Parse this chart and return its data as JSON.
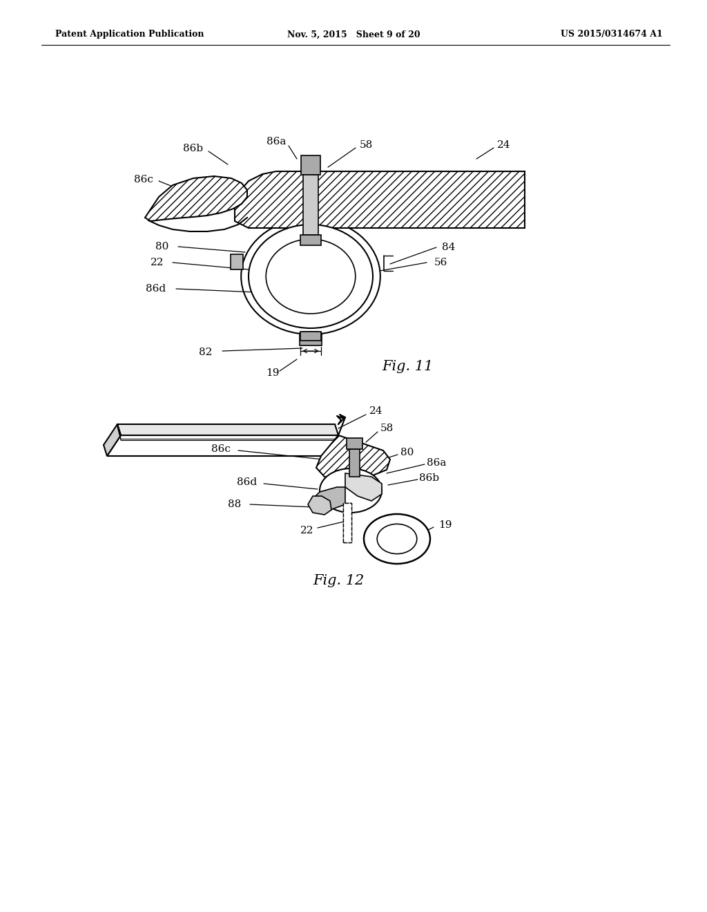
{
  "background_color": "#ffffff",
  "header_left": "Patent Application Publication",
  "header_center": "Nov. 5, 2015   Sheet 9 of 20",
  "header_right": "US 2015/0314674 A1",
  "fig11_caption": "Fig. 11",
  "fig12_caption": "Fig. 12",
  "line_color": "#000000"
}
